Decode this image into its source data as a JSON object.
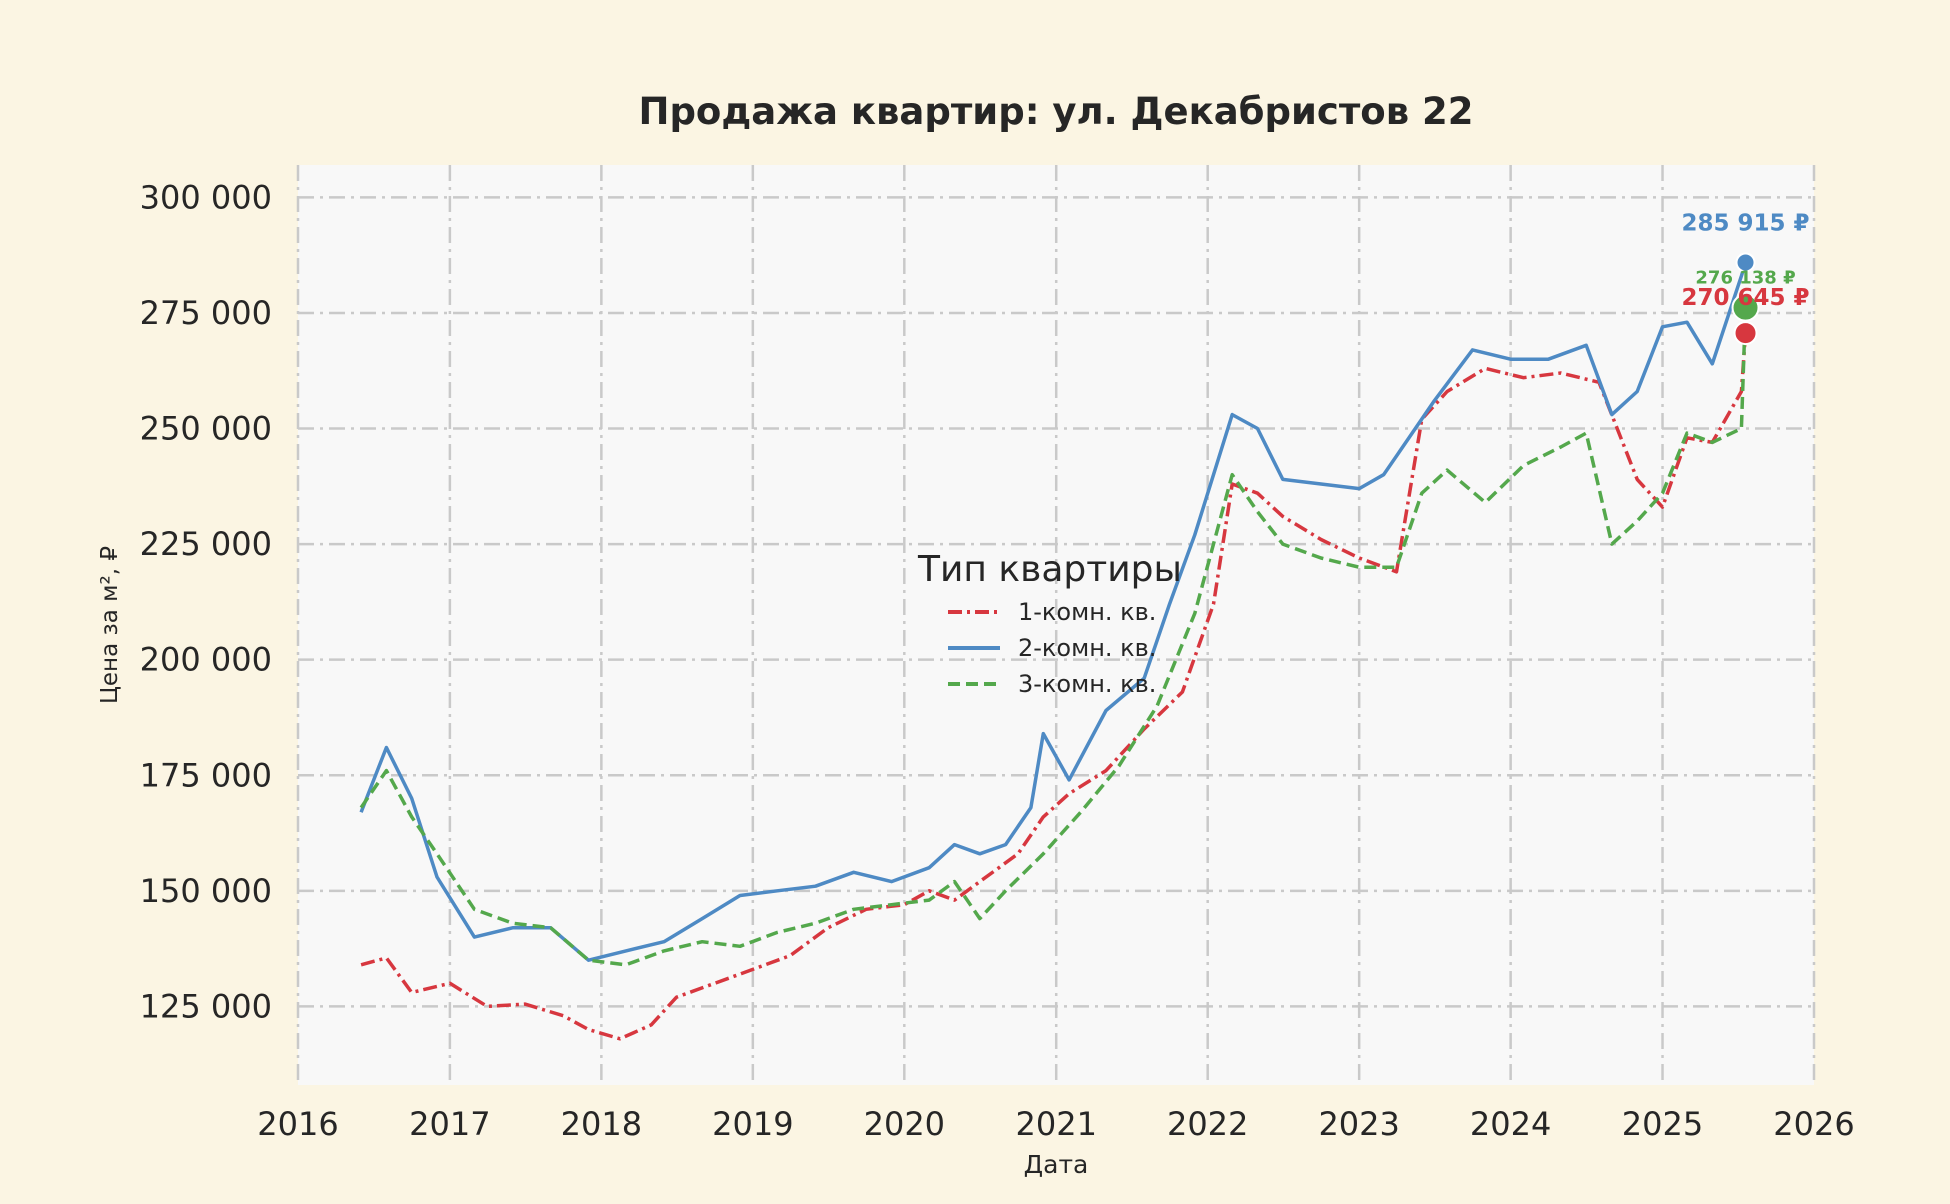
{
  "chart_data": {
    "type": "line",
    "title": "Продажа квартир: ул. Декабристов 22",
    "xlabel": "Дата",
    "ylabel": "Цена за м², ₽",
    "xlim": [
      "2016-01-01",
      "2026-01-01"
    ],
    "ylim": [
      108000,
      307000
    ],
    "x_ticks": [
      "2016",
      "2017",
      "2018",
      "2019",
      "2020",
      "2021",
      "2022",
      "2023",
      "2024",
      "2025",
      "2026"
    ],
    "y_ticks": [
      {
        "value": 125000,
        "label": "125 000"
      },
      {
        "value": 150000,
        "label": "150 000"
      },
      {
        "value": 175000,
        "label": "175 000"
      },
      {
        "value": 200000,
        "label": "200 000"
      },
      {
        "value": 225000,
        "label": "225 000"
      },
      {
        "value": 250000,
        "label": "250 000"
      },
      {
        "value": 275000,
        "label": "275 000"
      },
      {
        "value": 300000,
        "label": "300 000"
      }
    ],
    "grid": true,
    "legend": {
      "title": "Тип квартиры",
      "placement": "center"
    },
    "series": [
      {
        "name": "1-комн. кв.",
        "color": "#d7373f",
        "dash": "dashdot",
        "x": [
          "2016-06-01",
          "2016-08-01",
          "2016-10-01",
          "2017-01-01",
          "2017-04-01",
          "2017-07-01",
          "2017-10-01",
          "2017-12-01",
          "2018-02-15",
          "2018-05-01",
          "2018-07-01",
          "2018-10-01",
          "2019-01-01",
          "2019-04-01",
          "2019-07-01",
          "2019-10-01",
          "2020-01-01",
          "2020-03-01",
          "2020-05-01",
          "2020-07-01",
          "2020-10-01",
          "2020-12-01",
          "2021-02-01",
          "2021-05-01",
          "2021-08-01",
          "2021-11-01",
          "2022-01-15",
          "2022-03-01",
          "2022-05-01",
          "2022-07-01",
          "2022-10-01",
          "2023-01-01",
          "2023-04-01",
          "2023-06-01",
          "2023-08-01",
          "2023-11-01",
          "2024-02-01",
          "2024-05-01",
          "2024-08-01",
          "2024-11-01",
          "2025-01-01",
          "2025-03-01",
          "2025-05-01",
          "2025-07-10",
          "2025-07-20"
        ],
        "values": [
          134000,
          135500,
          128000,
          130000,
          125000,
          125500,
          123000,
          120000,
          118000,
          121000,
          127000,
          130000,
          133000,
          136000,
          142000,
          146000,
          147000,
          150000,
          148000,
          152000,
          158000,
          166000,
          171000,
          176000,
          185000,
          193000,
          212000,
          238000,
          236000,
          231000,
          226000,
          222000,
          219000,
          252000,
          258000,
          263000,
          261000,
          262000,
          260000,
          239000,
          233000,
          248000,
          247000,
          258000,
          270645
        ]
      },
      {
        "name": "2-комн. кв.",
        "color": "#4e8ac4",
        "dash": "solid",
        "x": [
          "2016-06-01",
          "2016-08-01",
          "2016-10-01",
          "2016-12-01",
          "2017-03-01",
          "2017-06-01",
          "2017-09-01",
          "2017-12-01",
          "2018-03-01",
          "2018-06-01",
          "2018-09-01",
          "2018-12-01",
          "2019-03-01",
          "2019-06-01",
          "2019-09-01",
          "2019-12-01",
          "2020-03-01",
          "2020-05-01",
          "2020-07-01",
          "2020-09-01",
          "2020-11-01",
          "2020-12-01",
          "2021-02-01",
          "2021-05-01",
          "2021-08-01",
          "2021-10-01",
          "2021-12-01",
          "2022-03-01",
          "2022-05-01",
          "2022-07-01",
          "2022-10-01",
          "2023-01-01",
          "2023-03-01",
          "2023-05-01",
          "2023-07-01",
          "2023-10-01",
          "2024-01-01",
          "2024-04-01",
          "2024-07-01",
          "2024-09-01",
          "2024-11-01",
          "2025-01-01",
          "2025-03-01",
          "2025-05-01",
          "2025-07-10",
          "2025-07-20"
        ],
        "values": [
          167000,
          181000,
          170000,
          153000,
          140000,
          142000,
          142000,
          135000,
          137000,
          139000,
          144000,
          149000,
          150000,
          151000,
          154000,
          152000,
          155000,
          160000,
          158000,
          160000,
          168000,
          184000,
          174000,
          189000,
          196000,
          212000,
          227000,
          253000,
          250000,
          239000,
          238000,
          237000,
          240000,
          248000,
          256000,
          267000,
          265000,
          265000,
          268000,
          253000,
          258000,
          272000,
          273000,
          264000,
          283000,
          285915
        ]
      },
      {
        "name": "3-комн. кв.",
        "color": "#54a84c",
        "dash": "dashed",
        "x": [
          "2016-06-01",
          "2016-08-01",
          "2016-10-01",
          "2016-12-01",
          "2017-03-01",
          "2017-06-01",
          "2017-09-01",
          "2017-12-01",
          "2018-03-01",
          "2018-06-01",
          "2018-09-01",
          "2018-12-01",
          "2019-03-01",
          "2019-06-01",
          "2019-09-01",
          "2019-12-01",
          "2020-03-01",
          "2020-05-01",
          "2020-07-01",
          "2020-09-01",
          "2020-12-01",
          "2021-03-01",
          "2021-06-01",
          "2021-09-01",
          "2021-12-01",
          "2022-03-01",
          "2022-05-01",
          "2022-07-01",
          "2022-10-01",
          "2023-01-01",
          "2023-04-01",
          "2023-06-01",
          "2023-08-01",
          "2023-11-01",
          "2024-02-01",
          "2024-05-01",
          "2024-07-01",
          "2024-09-01",
          "2024-11-01",
          "2025-01-01",
          "2025-03-01",
          "2025-05-01",
          "2025-07-10",
          "2025-07-20"
        ],
        "values": [
          168000,
          176000,
          166000,
          158000,
          146000,
          143000,
          142000,
          135000,
          134000,
          137000,
          139000,
          138000,
          141000,
          143000,
          146000,
          147000,
          148000,
          152000,
          144000,
          150000,
          158000,
          167000,
          177000,
          190000,
          210000,
          240000,
          232000,
          225000,
          222000,
          220000,
          220000,
          236000,
          241000,
          234000,
          242000,
          246000,
          249000,
          225000,
          230000,
          236000,
          249000,
          247000,
          250000,
          276138
        ]
      }
    ],
    "annotations": [
      {
        "series": "2-комн. кв.",
        "label": "285 915 ₽",
        "date": "2025-07-20",
        "value": 285915
      },
      {
        "series": "3-комн. кв.",
        "label": "276 138 ₽",
        "date": "2025-07-20",
        "value": 276138
      },
      {
        "series": "1-комн. кв.",
        "label": "270 645 ₽",
        "date": "2025-07-20",
        "value": 270645
      }
    ]
  }
}
